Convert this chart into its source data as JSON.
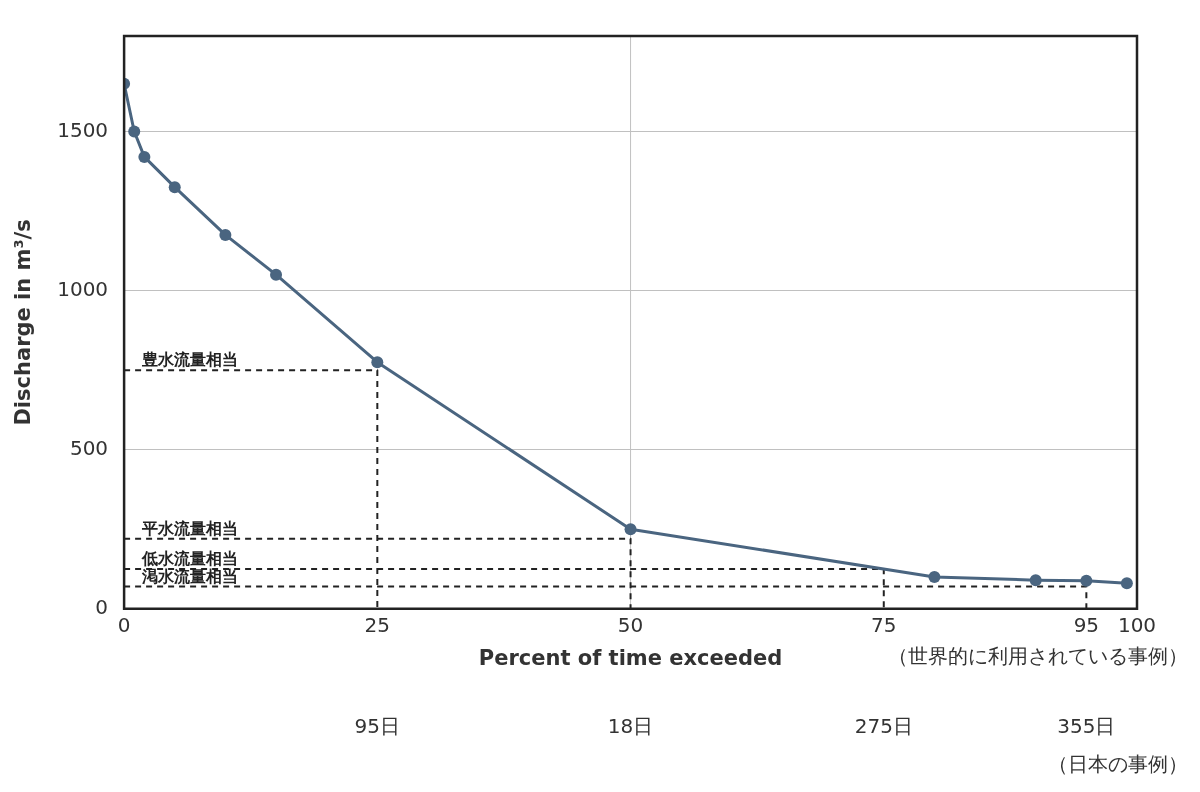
{
  "chart_data": {
    "type": "line",
    "xlabel": "Percent of time exceeded",
    "ylabel": "Discharge in m³/s",
    "annotations": [
      "（世界的に利用されている事例）",
      "95日",
      "18日",
      "275日",
      "355日",
      "（日本の事例）"
    ],
    "x": [
      0,
      1,
      2,
      5,
      10,
      15,
      25,
      50,
      80,
      90,
      95,
      99
    ],
    "series": [
      {
        "color": "#4a6580",
        "values": [
          1650,
          1500,
          1420,
          1325,
          1175,
          1050,
          775,
          250,
          100,
          90,
          88,
          80
        ]
      },
      {
        "name": "豊水流量相当",
        "color": "#222222",
        "x": [
          0,
          25,
          25
        ],
        "values": [
          750,
          750,
          0
        ],
        "line_style": "dashed",
        "marker": "none"
      },
      {
        "name": "平水流量相当",
        "color": "#222222",
        "x": [
          0,
          50,
          50
        ],
        "values": [
          220,
          220,
          0
        ],
        "line_style": "dashed",
        "marker": "none"
      },
      {
        "name": "低水流量相当",
        "color": "#222222",
        "x": [
          0,
          75,
          75
        ],
        "values": [
          125,
          125,
          0
        ],
        "line_style": "dashed",
        "marker": "none"
      },
      {
        "name": "渇水流量相当",
        "color": "#222222",
        "x": [
          0,
          95,
          95
        ],
        "values": [
          70,
          70,
          0
        ],
        "line_style": "dashed",
        "marker": "none"
      }
    ],
    "xlim": [
      0,
      100
    ],
    "xticks": [
      0,
      25,
      50,
      75,
      95,
      100
    ],
    "ylim": [
      0,
      1800
    ],
    "yticks": [
      0,
      500,
      1000,
      1500
    ],
    "ref_lines": [
      {
        "axis": "x",
        "value": 50,
        "color": "#c0c0c0",
        "line_style": "solid"
      }
    ],
    "grid": "y",
    "legend": false,
    "marker": "circle",
    "line_style": "solid"
  }
}
